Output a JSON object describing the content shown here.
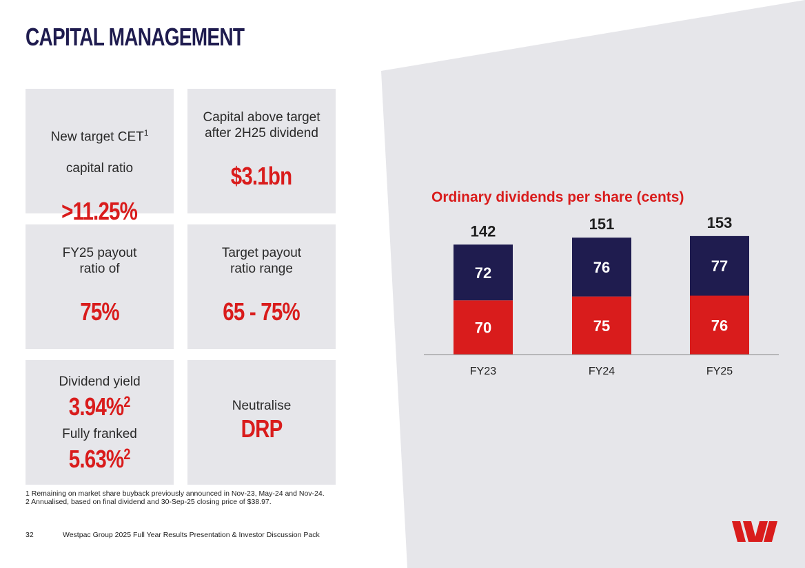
{
  "page": {
    "title": "CAPITAL MANAGEMENT"
  },
  "cards": [
    {
      "label": "New target CET",
      "label_sup": "1",
      "label_line2": "capital ratio",
      "value": ">11.25%"
    },
    {
      "label": "Capital above target\nafter 2H25 dividend",
      "value": "$3.1bn"
    },
    {
      "label": "FY25 payout\nratio of",
      "value": "75%"
    },
    {
      "label": "Target payout\nratio range",
      "value": "65 - 75%"
    },
    {
      "label": "Dividend yield",
      "value": "3.94%",
      "value_sup": "2",
      "label2": "Fully franked",
      "value2": "5.63%",
      "value2_sup": "2"
    },
    {
      "label": "Neutralise",
      "value": "DRP"
    }
  ],
  "footnotes": [
    "1 Remaining on market share buyback previously announced in Nov-23, May-24 and Nov-24.",
    "2 Annualised, based on final dividend and 30-Sep-25 closing price of $38.97."
  ],
  "footer": {
    "page_number": "32",
    "text": "Westpac Group 2025 Full Year Results Presentation & Investor Discussion Pack"
  },
  "colors": {
    "navy": "#1f1c4f",
    "red": "#d91c1c",
    "panel": "#e6e6ea"
  },
  "logo": {
    "icon": "westpac-logo-icon"
  },
  "chart_data": {
    "type": "bar",
    "stacked": true,
    "title": "Ordinary dividends per share (cents)",
    "categories": [
      "FY23",
      "FY24",
      "FY25"
    ],
    "series": [
      {
        "name": "Bottom",
        "color": "#d91c1c",
        "values": [
          70,
          75,
          76
        ]
      },
      {
        "name": "Top",
        "color": "#1f1c4f",
        "values": [
          72,
          76,
          77
        ]
      }
    ],
    "totals": [
      142,
      151,
      153
    ],
    "ylim": [
      0,
      160
    ],
    "xlabel": "",
    "ylabel": "",
    "grid": false,
    "legend": "none"
  }
}
